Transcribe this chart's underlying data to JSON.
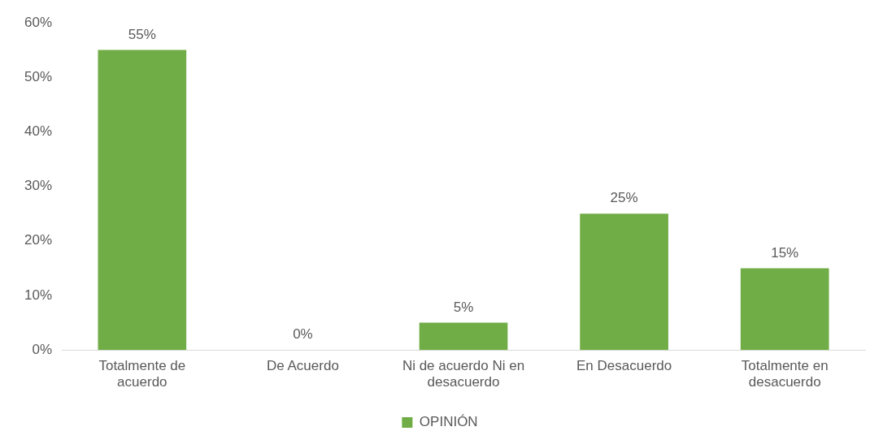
{
  "chart_data": {
    "type": "bar",
    "categories": [
      "Totalmente de acuerdo",
      "De Acuerdo",
      "Ni de acuerdo Ni en desacuerdo",
      "En Desacuerdo",
      "Totalmente en desacuerdo"
    ],
    "series": [
      {
        "name": "OPINIÓN",
        "color": "#70ad47",
        "values": [
          55,
          0,
          5,
          25,
          15
        ],
        "value_labels": [
          "55%",
          "0%",
          "5%",
          "25%",
          "15%"
        ]
      }
    ],
    "ylim": [
      0,
      60
    ],
    "yticks": [
      {
        "value": 0,
        "label": "0%"
      },
      {
        "value": 10,
        "label": "10%"
      },
      {
        "value": 20,
        "label": "20%"
      },
      {
        "value": 30,
        "label": "30%"
      },
      {
        "value": 40,
        "label": "40%"
      },
      {
        "value": 50,
        "label": "50%"
      },
      {
        "value": 60,
        "label": "60%"
      }
    ],
    "grid": false,
    "legend": "bottom"
  }
}
